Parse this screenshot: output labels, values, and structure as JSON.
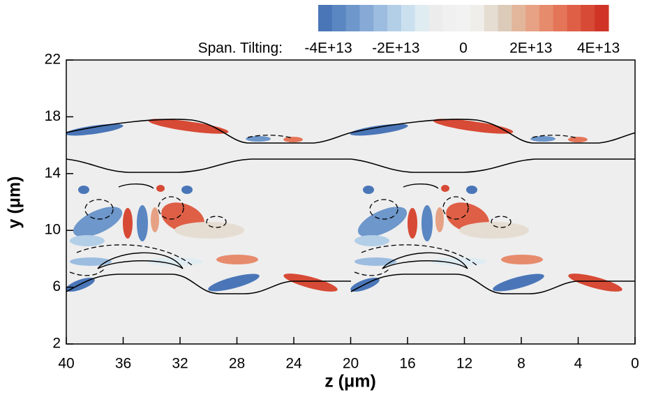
{
  "chart_data": {
    "type": "contour",
    "xlabel": "z (μm)",
    "ylabel": "y (μm)",
    "xlim": [
      40,
      0
    ],
    "xticks": [
      40,
      36,
      32,
      28,
      24,
      20,
      16,
      12,
      8,
      4,
      0
    ],
    "ylim": [
      2,
      22
    ],
    "yticks": [
      2,
      6,
      10,
      14,
      18,
      22
    ],
    "colorbar": {
      "label": "Span. Tilting:",
      "lim": [
        -43000000000000,
        43000000000000
      ],
      "ticks": [
        {
          "value": -40000000000000,
          "label": "-4E+13"
        },
        {
          "value": -20000000000000,
          "label": "-2E+13"
        },
        0,
        {
          "value": 20000000000000,
          "label": "2E+13"
        },
        {
          "value": 40000000000000,
          "label": "4E+13"
        }
      ],
      "colors": [
        "#4a76b8",
        "#5a86c2",
        "#6e97cb",
        "#86aad5",
        "#9cbde0",
        "#b3cfe8",
        "#cbe0ef",
        "#dfecf2",
        "#ececec",
        "#f0f0f0",
        "#f2f2f2",
        "#f0eeea",
        "#e6ddd2",
        "#dccbb9",
        "#e2b69b",
        "#e7a184",
        "#e78b6d",
        "#e47558",
        "#de5f46",
        "#d74a35",
        "#cf3427"
      ]
    }
  }
}
